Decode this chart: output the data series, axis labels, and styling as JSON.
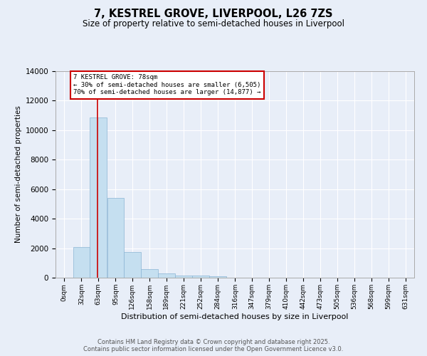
{
  "title": "7, KESTREL GROVE, LIVERPOOL, L26 7ZS",
  "subtitle": "Size of property relative to semi-detached houses in Liverpool",
  "xlabel": "Distribution of semi-detached houses by size in Liverpool",
  "ylabel": "Number of semi-detached properties",
  "bar_labels": [
    "0sqm",
    "32sqm",
    "63sqm",
    "95sqm",
    "126sqm",
    "158sqm",
    "189sqm",
    "221sqm",
    "252sqm",
    "284sqm",
    "316sqm",
    "347sqm",
    "379sqm",
    "410sqm",
    "442sqm",
    "473sqm",
    "505sqm",
    "536sqm",
    "568sqm",
    "599sqm",
    "631sqm"
  ],
  "bar_values": [
    0,
    2100,
    10850,
    5400,
    1760,
    580,
    300,
    130,
    130,
    80,
    0,
    0,
    0,
    0,
    0,
    0,
    0,
    0,
    0,
    0,
    0
  ],
  "bar_color": "#c5dff0",
  "bar_edge_color": "#8ab4d4",
  "property_size": 78,
  "property_label": "7 KESTREL GROVE: 78sqm",
  "annotation_line1": "← 30% of semi-detached houses are smaller (6,505)",
  "annotation_line2": "70% of semi-detached houses are larger (14,877) →",
  "red_line_color": "#cc0000",
  "annotation_box_color": "#cc0000",
  "ylim": [
    0,
    14000
  ],
  "yticks": [
    0,
    2000,
    4000,
    6000,
    8000,
    10000,
    12000,
    14000
  ],
  "footer_line1": "Contains HM Land Registry data © Crown copyright and database right 2025.",
  "footer_line2": "Contains public sector information licensed under the Open Government Licence v3.0.",
  "bg_color": "#e8eef8",
  "grid_color": "#ffffff"
}
